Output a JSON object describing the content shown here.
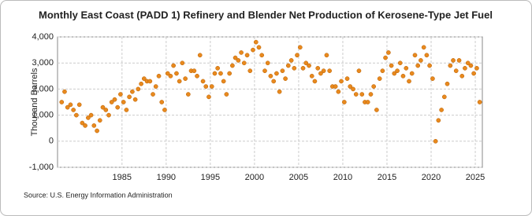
{
  "chart_data": {
    "type": "scatter",
    "title": "Monthly East Coast (PADD 1) Refinery and Blender Net Production of Kerosene-Type Jet Fuel",
    "y_label": "Thousand Barrels",
    "source": "Source: U.S. Energy Information Administration",
    "color": "#e8891e",
    "grid": true,
    "xlim": [
      1977.7,
      2025.8
    ],
    "xticks": [
      1985,
      1990,
      1995,
      2000,
      2005,
      2010,
      2015,
      2020,
      2025
    ],
    "ylim": [
      -1000,
      4000
    ],
    "yticks": [
      {
        "value": -1000,
        "label": "-1,000"
      },
      0,
      {
        "value": 1000,
        "label": "1,000"
      },
      {
        "value": 2000,
        "label": "2,000"
      },
      {
        "value": 3000,
        "label": "3,000"
      },
      {
        "value": 4000,
        "label": "4,000"
      }
    ],
    "x": [
      1978.17,
      1978.5,
      1978.83,
      1979.17,
      1979.5,
      1979.83,
      1980.17,
      1980.5,
      1980.83,
      1981.17,
      1981.5,
      1981.83,
      1982.17,
      1982.5,
      1982.83,
      1983.17,
      1983.5,
      1983.83,
      1984.17,
      1984.5,
      1984.83,
      1985.17,
      1985.5,
      1985.83,
      1986.17,
      1986.5,
      1986.83,
      1987.17,
      1987.5,
      1987.83,
      1988.17,
      1988.5,
      1988.83,
      1989.17,
      1989.5,
      1989.83,
      1990.17,
      1990.5,
      1990.83,
      1991.17,
      1991.5,
      1991.83,
      1992.17,
      1992.5,
      1992.83,
      1993.17,
      1993.5,
      1993.83,
      1994.17,
      1994.5,
      1994.83,
      1995.17,
      1995.5,
      1995.83,
      1996.17,
      1996.5,
      1996.83,
      1997.17,
      1997.5,
      1997.83,
      1998.17,
      1998.5,
      1998.83,
      1999.17,
      1999.5,
      1999.83,
      2000.17,
      2000.5,
      2000.83,
      2001.17,
      2001.5,
      2001.83,
      2002.17,
      2002.5,
      2002.83,
      2003.17,
      2003.5,
      2003.83,
      2004.17,
      2004.5,
      2004.83,
      2005.17,
      2005.5,
      2005.83,
      2006.17,
      2006.5,
      2006.83,
      2007.17,
      2007.5,
      2007.83,
      2008.17,
      2008.5,
      2008.83,
      2009.17,
      2009.5,
      2009.83,
      2010.17,
      2010.5,
      2010.83,
      2011.17,
      2011.5,
      2011.83,
      2012.17,
      2012.5,
      2012.83,
      2013.17,
      2013.5,
      2013.83,
      2014.17,
      2014.5,
      2014.83,
      2015.17,
      2015.5,
      2015.83,
      2016.17,
      2016.5,
      2016.83,
      2017.17,
      2017.5,
      2017.83,
      2018.17,
      2018.5,
      2018.83,
      2019.17,
      2019.5,
      2019.83,
      2020.17,
      2020.5,
      2020.83,
      2021.17,
      2021.5,
      2021.83,
      2022.17,
      2022.5,
      2022.83,
      2023.17,
      2023.5,
      2023.83,
      2024.17,
      2024.5,
      2024.83,
      2025.17,
      2025.5
    ],
    "values": [
      1500,
      1900,
      1300,
      1400,
      1200,
      1000,
      1400,
      700,
      600,
      900,
      1000,
      600,
      400,
      800,
      1300,
      1200,
      1000,
      1500,
      1600,
      1300,
      1800,
      1500,
      1200,
      1700,
      1900,
      1600,
      2000,
      2200,
      2400,
      2300,
      2300,
      1800,
      2100,
      2500,
      1500,
      1200,
      2600,
      2500,
      2900,
      2600,
      2300,
      3000,
      2400,
      1800,
      2700,
      2700,
      2500,
      3300,
      2300,
      2100,
      1700,
      2100,
      2600,
      2800,
      2600,
      2300,
      1800,
      2600,
      2900,
      3200,
      3100,
      3400,
      3000,
      3300,
      2700,
      3500,
      3800,
      3600,
      3300,
      2700,
      3000,
      2500,
      2300,
      2600,
      1900,
      2700,
      2400,
      2900,
      3100,
      2800,
      3300,
      3600,
      2800,
      3000,
      2900,
      2500,
      2300,
      2800,
      2600,
      2700,
      3300,
      2700,
      2100,
      2100,
      1900,
      2300,
      1500,
      2400,
      2100,
      2000,
      1800,
      2700,
      1800,
      1500,
      1500,
      1800,
      2100,
      1200,
      2400,
      2700,
      3200,
      3400,
      2900,
      2600,
      2700,
      3000,
      2500,
      2800,
      2300,
      2600,
      3300,
      2900,
      3100,
      3600,
      3300,
      2900,
      2400,
      0,
      800,
      1200,
      1700,
      2200,
      2900,
      3100,
      2700,
      3100,
      2500,
      2800,
      3000,
      2900,
      2600,
      2800,
      1500
    ]
  }
}
